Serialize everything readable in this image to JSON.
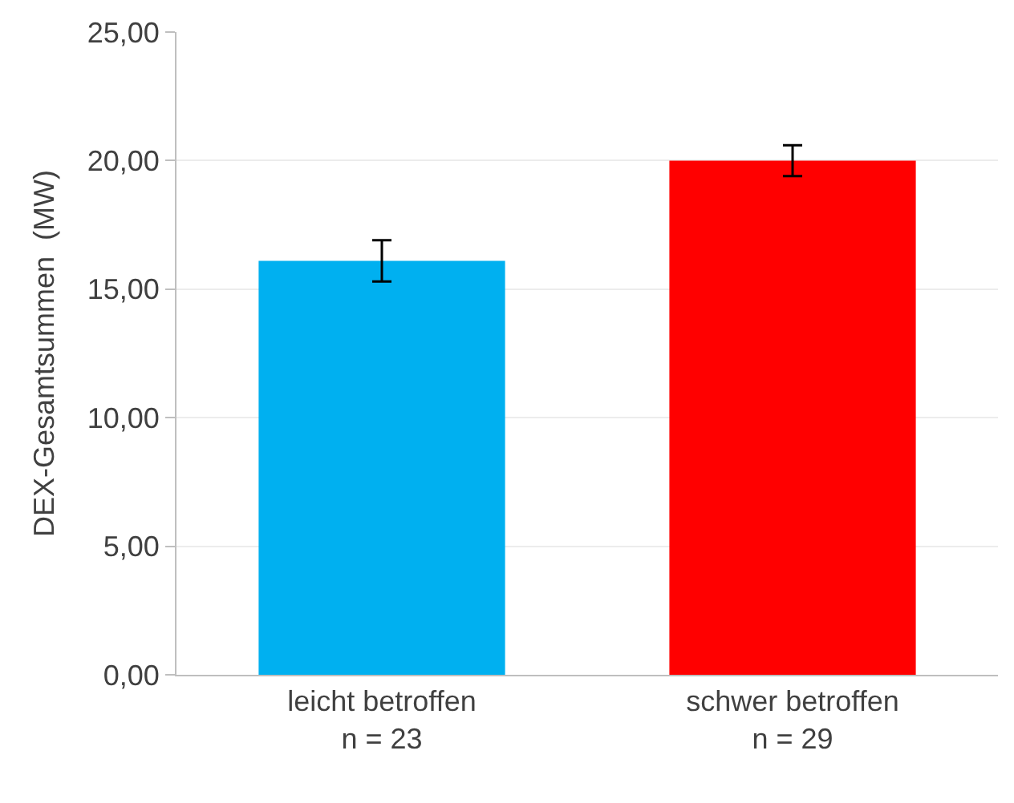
{
  "chart_data": {
    "type": "bar",
    "ylabel": "DEX-Gesamtsummen  (MW)",
    "categories": [
      "leicht betroffen\nn = 23",
      "schwer betroffen\nn = 29"
    ],
    "values": [
      16.1,
      20.0
    ],
    "colors": [
      "#00b0f0",
      "#ff0000"
    ],
    "errors": [
      0.8,
      0.6
    ],
    "ylim": [
      0,
      25
    ],
    "yticks": [
      {
        "value": 0,
        "label": "0,00"
      },
      {
        "value": 5,
        "label": "5,00"
      },
      {
        "value": 10,
        "label": "10,00"
      },
      {
        "value": 15,
        "label": "15,00"
      },
      {
        "value": 20,
        "label": "20,00"
      },
      {
        "value": 25,
        "label": "25,00"
      }
    ],
    "grid": "y"
  }
}
